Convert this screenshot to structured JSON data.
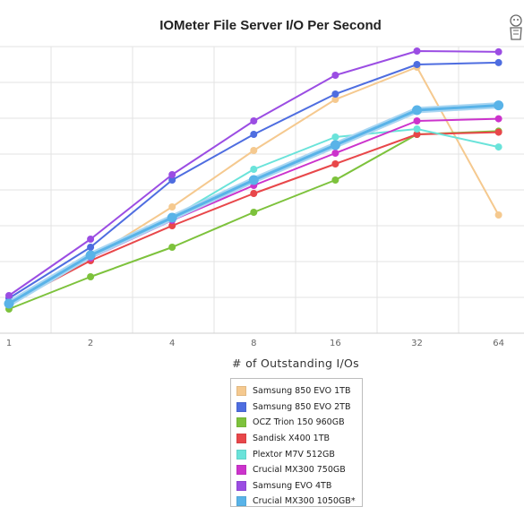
{
  "chart_data": {
    "type": "line",
    "title": "IOMeter File Server I/O Per Second",
    "xlabel": "# of Outstanding I/Os",
    "ylabel": "",
    "categories": [
      "1",
      "2",
      "4",
      "8",
      "16",
      "32",
      "64"
    ],
    "ylim": [
      0,
      100
    ],
    "grid": true,
    "legend_position": "bottom-center",
    "series": [
      {
        "name": "Samsung 850 EVO 1TB",
        "color": "#F5C98F",
        "values": [
          11,
          28,
          47,
          68,
          87,
          99,
          44
        ]
      },
      {
        "name": "Samsung 850 EVO 2TB",
        "color": "#4E6DE0",
        "values": [
          13,
          32,
          57,
          74,
          89,
          100,
          100.7
        ]
      },
      {
        "name": "OCZ Trion 150 960GB",
        "color": "#7DC23C",
        "values": [
          9,
          21,
          32,
          45,
          57,
          74,
          75.2
        ]
      },
      {
        "name": "Sandisk X400 1TB",
        "color": "#E8474A",
        "values": [
          11,
          27,
          40,
          52,
          63,
          74,
          74.8
        ]
      },
      {
        "name": "Plextor M7V 512GB",
        "color": "#6AE3DA",
        "values": [
          11,
          29,
          43,
          61,
          73,
          76,
          69.3
        ]
      },
      {
        "name": "Crucial MX300 750GB",
        "color": "#CC33CC",
        "values": [
          11,
          28,
          42,
          55,
          67,
          79,
          79.8
        ]
      },
      {
        "name": "Samsung EVO 4TB",
        "color": "#9B4DE3",
        "values": [
          14,
          35,
          59,
          79,
          96,
          105,
          104.7
        ]
      },
      {
        "name": "Crucial MX300 1050GB*",
        "color": "#59B3E8",
        "values": [
          11,
          29,
          43,
          57,
          70,
          83,
          84.8
        ]
      }
    ]
  },
  "logo_icon": "mascot-icon"
}
